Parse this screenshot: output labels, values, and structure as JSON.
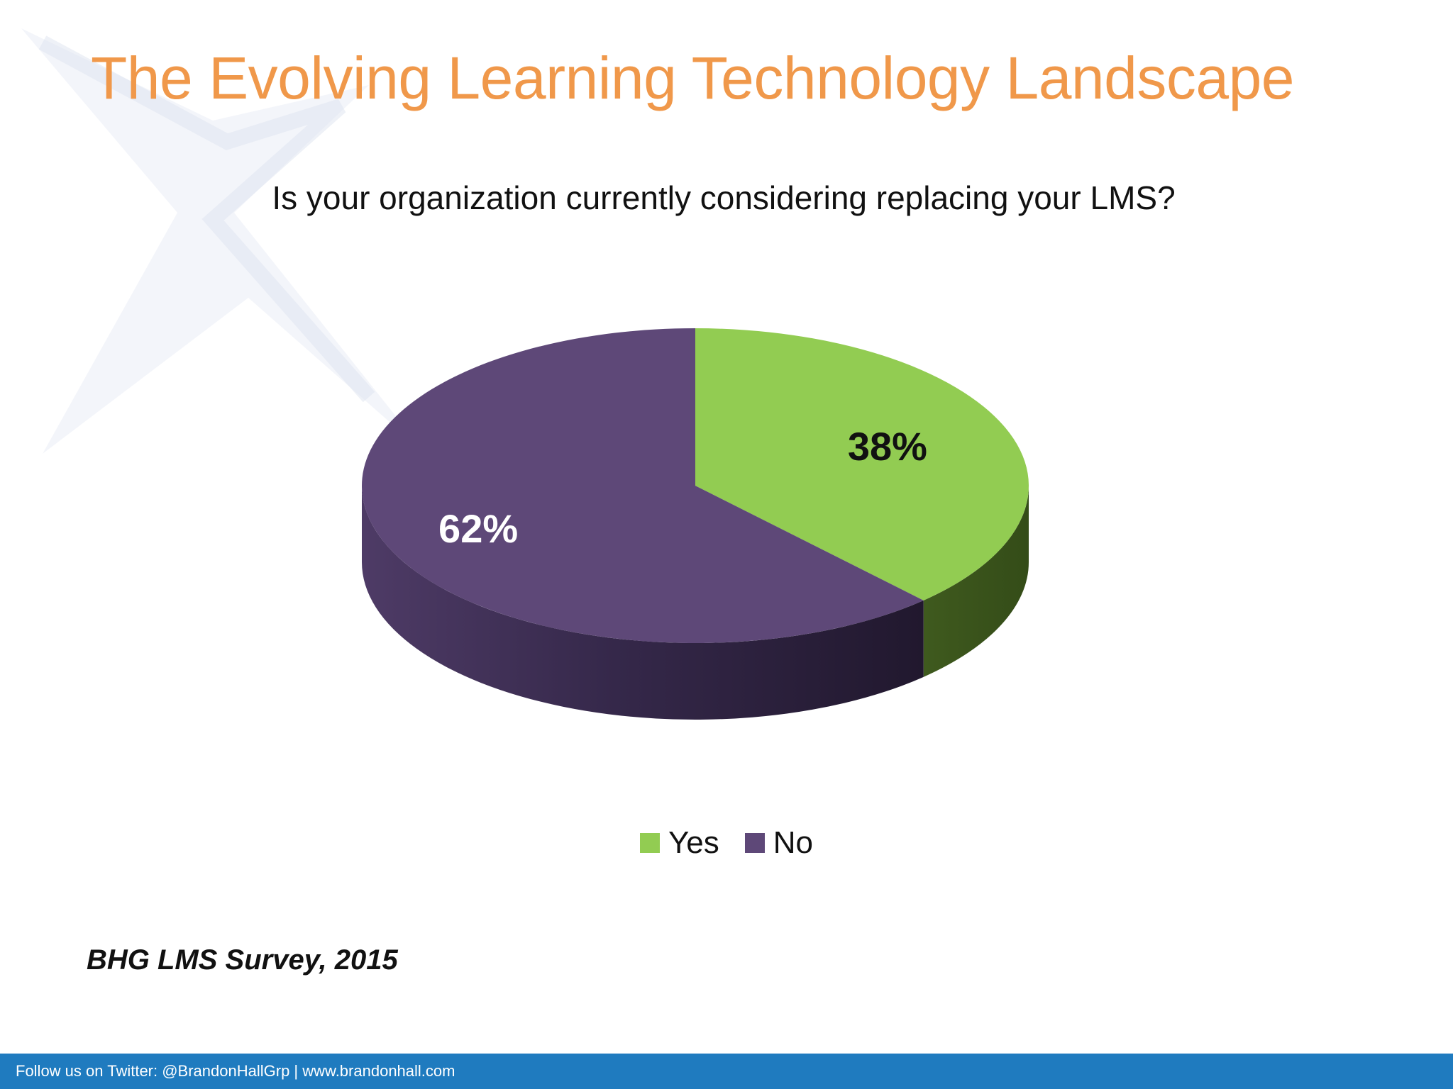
{
  "title": "The Evolving Learning Technology Landscape",
  "footer": {
    "text": "Follow us on Twitter: @BrandonHallGrp | www.brandonhall.com"
  },
  "source_note": "BHG LMS Survey, 2015",
  "colors": {
    "title": "#F0984A",
    "footer_bar": "#1F7BBF",
    "yes": "#92CC52",
    "no": "#5E4878"
  },
  "chart_data": {
    "type": "pie",
    "title": "Is your organization currently considering replacing your LMS?",
    "categories": [
      "Yes",
      "No"
    ],
    "values": [
      38,
      62
    ],
    "labels": [
      "38%",
      "62%"
    ],
    "unit": "%",
    "legend": "bottom",
    "style": "3d"
  }
}
